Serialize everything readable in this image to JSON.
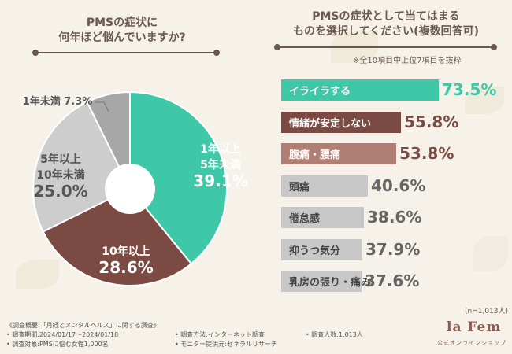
{
  "left_panel": {
    "title_line1": "PMSの症状に",
    "title_line2": "何年ほど悩んでいますか?"
  },
  "right_panel": {
    "title_line1": "PMSの症状として当てはまる",
    "title_line2": "ものを選択してください(複数回答可)",
    "note": "※全10項目中上位7項目を抜粋",
    "sample_size": "(n=1,013人)"
  },
  "chart_data": [
    {
      "type": "pie",
      "title": "PMSの症状に何年ほど悩んでいますか?",
      "slices": [
        {
          "label_line1": "1年以上",
          "label_line2": "5年未満",
          "value": 39.1,
          "value_text": "39.1%",
          "color": "#3ec8a8",
          "text_color": "#ffffff"
        },
        {
          "label_line1": "10年以上",
          "label_line2": "",
          "value": 28.6,
          "value_text": "28.6%",
          "color": "#7b4a42",
          "text_color": "#ffffff"
        },
        {
          "label_line1": "5年以上",
          "label_line2": "10年未満",
          "value": 25.0,
          "value_text": "25.0%",
          "color": "#cdcdcd",
          "text_color": "#555555"
        },
        {
          "label_line1": "1年未満",
          "label_line2": "",
          "value": 7.3,
          "value_text": "7.3%",
          "color": "#a7a7a7",
          "text_color": "#555555"
        }
      ]
    },
    {
      "type": "bar",
      "orientation": "horizontal",
      "title": "PMSの症状として当てはまるものを選択してください(複数回答可)",
      "xlim": [
        0,
        100
      ],
      "categories": [
        "イライラする",
        "情緒が安定しない",
        "腹痛・腰痛",
        "頭痛",
        "倦怠感",
        "抑うつ気分",
        "乳房の張り・痛み"
      ],
      "values": [
        73.5,
        55.8,
        53.8,
        40.6,
        38.6,
        37.9,
        37.6
      ],
      "value_texts": [
        "73.5%",
        "55.8%",
        "53.8%",
        "40.6%",
        "38.6%",
        "37.9%",
        "37.6%"
      ],
      "colors": [
        "#3ec8a8",
        "#7b4a42",
        "#b07f74",
        "#c8c8c8",
        "#c8c8c8",
        "#c8c8c8",
        "#c8c8c8"
      ],
      "label_colors": [
        "#ffffff",
        "#ffffff",
        "#ffffff",
        "#444444",
        "#444444",
        "#444444",
        "#444444"
      ],
      "value_colors": [
        "#3ec8a8",
        "#7b4a42",
        "#7b4a42",
        "#666666",
        "#666666",
        "#666666",
        "#666666"
      ]
    }
  ],
  "footer": {
    "summary": "《調査概要:「月経とメンタルヘルス」に関する調査》",
    "period": "• 調査期間:2024/01/17〜2024/01/18",
    "target": "• 調査対象:PMSに悩む女性1,000名",
    "method": "• 調査方法:インターネット調査",
    "monitor": "• モニター提供元:ゼネラルリサーチ",
    "count": "• 調査人数:1,013人"
  },
  "logo": {
    "name": "la Fem",
    "subtitle": "公式オンラインショップ"
  }
}
